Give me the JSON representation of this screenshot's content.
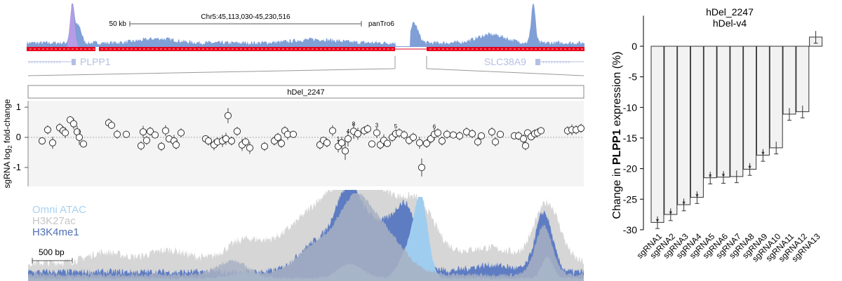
{
  "genome_browser": {
    "scale_label": "50 kb",
    "region": "Chr5:45,113,030-45,230,516",
    "track_label": "panTro6",
    "gene_left": "PLPP1",
    "gene_right": "SLC38A9",
    "deletion_label": "hDel_2247"
  },
  "tiling_screen": {
    "ylabel": "sgRNA log",
    "ylabel_sub": "2",
    "ylabel_tail": " fold-change",
    "yticks": [
      "1",
      "0",
      "-1"
    ],
    "guides": [
      {
        "x": 60,
        "v": -0.12,
        "e": 0.12
      },
      {
        "x": 68,
        "v": 0.25,
        "e": 0.15
      },
      {
        "x": 75,
        "v": -0.18,
        "e": 0.2
      },
      {
        "x": 85,
        "v": 0.32,
        "e": 0.15
      },
      {
        "x": 90,
        "v": 0.22,
        "e": 0.15
      },
      {
        "x": 93,
        "v": 0.15,
        "e": 0.18
      },
      {
        "x": 100,
        "v": 0.58,
        "e": 0.12
      },
      {
        "x": 105,
        "v": 0.45,
        "e": 0.18
      },
      {
        "x": 110,
        "v": 0.18,
        "e": 0.2
      },
      {
        "x": 113,
        "v": 0.0,
        "e": 0.25
      },
      {
        "x": 119,
        "v": -0.22,
        "e": 0.12
      },
      {
        "x": 155,
        "v": 0.48,
        "e": 0.15
      },
      {
        "x": 159,
        "v": 0.4,
        "e": 0.12
      },
      {
        "x": 167,
        "v": 0.1,
        "e": 0.15
      },
      {
        "x": 180,
        "v": 0.1,
        "e": 0.12
      },
      {
        "x": 201,
        "v": -0.28,
        "e": 0.15
      },
      {
        "x": 204,
        "v": 0.18,
        "e": 0.2
      },
      {
        "x": 209,
        "v": -0.1,
        "e": 0.15
      },
      {
        "x": 214,
        "v": 0.2,
        "e": 0.15
      },
      {
        "x": 221,
        "v": 0.08,
        "e": 0.12
      },
      {
        "x": 230,
        "v": -0.3,
        "e": 0.15
      },
      {
        "x": 236,
        "v": 0.22,
        "e": 0.18
      },
      {
        "x": 241,
        "v": -0.05,
        "e": 0.12
      },
      {
        "x": 248,
        "v": -0.12,
        "e": 0.2
      },
      {
        "x": 251,
        "v": -0.25,
        "e": 0.15
      },
      {
        "x": 258,
        "v": 0.15,
        "e": 0.15
      },
      {
        "x": 293,
        "v": -0.05,
        "e": 0.12
      },
      {
        "x": 297,
        "v": -0.12,
        "e": 0.15
      },
      {
        "x": 305,
        "v": -0.25,
        "e": 0.18
      },
      {
        "x": 310,
        "v": -0.15,
        "e": 0.15
      },
      {
        "x": 317,
        "v": -0.12,
        "e": 0.2
      },
      {
        "x": 322,
        "v": -0.05,
        "e": 0.2
      },
      {
        "x": 325,
        "v": 0.72,
        "e": 0.25
      },
      {
        "x": 330,
        "v": -0.12,
        "e": 0.15
      },
      {
        "x": 338,
        "v": 0.2,
        "e": 0.15
      },
      {
        "x": 345,
        "v": -0.25,
        "e": 0.2
      },
      {
        "x": 350,
        "v": -0.15,
        "e": 0.15
      },
      {
        "x": 356,
        "v": -0.35,
        "e": 0.2
      },
      {
        "x": 377,
        "v": -0.3,
        "e": 0.15
      },
      {
        "x": 391,
        "v": -0.12,
        "e": 0.15
      },
      {
        "x": 396,
        "v": 0.0,
        "e": 0.15
      },
      {
        "x": 401,
        "v": -0.2,
        "e": 0.15
      },
      {
        "x": 406,
        "v": 0.22,
        "e": 0.15
      },
      {
        "x": 410,
        "v": 0.1,
        "e": 0.18
      },
      {
        "x": 418,
        "v": 0.1,
        "e": 0.12
      },
      {
        "x": 456,
        "v": -0.25,
        "e": 0.15
      },
      {
        "x": 461,
        "v": -0.1,
        "e": 0.12
      },
      {
        "x": 466,
        "v": -0.18,
        "e": 0.15
      },
      {
        "x": 474,
        "v": 0.22,
        "e": 0.18
      },
      {
        "x": 482,
        "v": -0.3,
        "e": 0.2
      },
      {
        "x": 487,
        "v": -0.18,
        "e": 0.2
      },
      {
        "x": 492,
        "v": -0.45,
        "e": 0.3
      },
      {
        "x": 496,
        "v": -0.05,
        "e": 0.25
      },
      {
        "x": 504,
        "v": 0.2,
        "e": 0.25
      },
      {
        "x": 510,
        "v": 0.12,
        "e": 0.2
      },
      {
        "x": 519,
        "v": 0.22,
        "e": 0.15
      },
      {
        "x": 524,
        "v": 0.28,
        "e": 0.15
      },
      {
        "x": 530,
        "v": -0.22,
        "e": 0.12
      },
      {
        "x": 537,
        "v": 0.15,
        "e": 0.18
      },
      {
        "x": 542,
        "v": -0.25,
        "e": 0.15
      },
      {
        "x": 547,
        "v": -0.1,
        "e": 0.2
      },
      {
        "x": 552,
        "v": -0.2,
        "e": 0.12
      },
      {
        "x": 559,
        "v": 0.0,
        "e": 0.15
      },
      {
        "x": 564,
        "v": 0.12,
        "e": 0.15
      },
      {
        "x": 569,
        "v": 0.15,
        "e": 0.15
      },
      {
        "x": 576,
        "v": 0.08,
        "e": 0.15
      },
      {
        "x": 583,
        "v": -0.1,
        "e": 0.15
      },
      {
        "x": 589,
        "v": 0.0,
        "e": 0.15
      },
      {
        "x": 598,
        "v": -0.18,
        "e": 0.2
      },
      {
        "x": 601,
        "v": -1.0,
        "e": 0.3
      },
      {
        "x": 608,
        "v": -0.2,
        "e": 0.15
      },
      {
        "x": 614,
        "v": -0.05,
        "e": 0.15
      },
      {
        "x": 619,
        "v": 0.1,
        "e": 0.2
      },
      {
        "x": 624,
        "v": 0.15,
        "e": 0.15
      },
      {
        "x": 630,
        "v": -0.12,
        "e": 0.15
      },
      {
        "x": 637,
        "v": 0.1,
        "e": 0.15
      },
      {
        "x": 646,
        "v": 0.08,
        "e": 0.12
      },
      {
        "x": 655,
        "v": 0.05,
        "e": 0.15
      },
      {
        "x": 665,
        "v": 0.18,
        "e": 0.15
      },
      {
        "x": 673,
        "v": 0.12,
        "e": 0.15
      },
      {
        "x": 681,
        "v": -0.15,
        "e": 0.15
      },
      {
        "x": 686,
        "v": 0.05,
        "e": 0.12
      },
      {
        "x": 701,
        "v": 0.18,
        "e": 0.15
      },
      {
        "x": 706,
        "v": -0.15,
        "e": 0.15
      },
      {
        "x": 713,
        "v": 0.1,
        "e": 0.12
      },
      {
        "x": 733,
        "v": 0.05,
        "e": 0.12
      },
      {
        "x": 739,
        "v": 0.05,
        "e": 0.15
      },
      {
        "x": 746,
        "v": -0.05,
        "e": 0.15
      },
      {
        "x": 749,
        "v": -0.28,
        "e": 0.15
      },
      {
        "x": 752,
        "v": 0.15,
        "e": 0.12
      },
      {
        "x": 757,
        "v": 0.02,
        "e": 0.12
      },
      {
        "x": 762,
        "v": 0.12,
        "e": 0.15
      },
      {
        "x": 766,
        "v": 0.15,
        "e": 0.15
      },
      {
        "x": 771,
        "v": 0.22,
        "e": 0.12
      },
      {
        "x": 809,
        "v": 0.22,
        "e": 0.15
      },
      {
        "x": 815,
        "v": 0.25,
        "e": 0.18
      },
      {
        "x": 821,
        "v": 0.25,
        "e": 0.15
      },
      {
        "x": 828,
        "v": 0.3,
        "e": 0.15
      }
    ],
    "labels": [
      {
        "text": "1",
        "x": 482,
        "v": -0.3
      },
      {
        "text": "4",
        "x": 496,
        "v": -0.05
      },
      {
        "text": "8",
        "x": 504,
        "v": 0.2
      },
      {
        "text": "3",
        "x": 537,
        "v": 0.15
      },
      {
        "text": "5",
        "x": 564,
        "v": 0.12
      },
      {
        "text": "6",
        "x": 619,
        "v": 0.1
      }
    ]
  },
  "epigenome": {
    "legend": [
      {
        "label": "Omni ATAC",
        "color": "#a9d2f0"
      },
      {
        "label": "H3K27ac",
        "color": "#c6c6c6"
      },
      {
        "label": "H3K4me1",
        "color": "#4f6fb5"
      }
    ],
    "scale_label": "500 bp"
  },
  "chart_data": {
    "type": "bar",
    "title": "hDel_2247",
    "subtitle": "hDel-v4",
    "ylabel_pre": "Change in ",
    "ylabel_gene": "PLPP1",
    "ylabel_post": " expression (%)",
    "ylim": [
      -30,
      5
    ],
    "yticks": [
      "0",
      "-5",
      "-10",
      "-15",
      "-20",
      "-25",
      "-30"
    ],
    "categories": [
      "sgRNA1",
      "sgRNA2",
      "sgRNA3",
      "sgRNA4",
      "sgRNA5",
      "sgRNA6",
      "sgRNA7",
      "sgRNA8",
      "sgRNA9",
      "sgRNA10",
      "sgRNA11",
      "sgRNA12",
      "sgRNA13"
    ],
    "values": [
      -28.8,
      -27.5,
      -25.9,
      -24.7,
      -21.5,
      -21.4,
      -21.3,
      -20.1,
      -17.8,
      -16.6,
      -11.1,
      -10.7,
      1.5
    ],
    "errors": [
      1.0,
      1.0,
      1.0,
      1.0,
      1.0,
      1.0,
      1.0,
      1.0,
      1.0,
      1.0,
      1.0,
      1.0,
      1.0
    ],
    "significant": [
      "*",
      "*",
      "*",
      "*",
      "*",
      "*",
      "",
      "*",
      "*",
      "",
      "",
      "",
      ""
    ]
  }
}
